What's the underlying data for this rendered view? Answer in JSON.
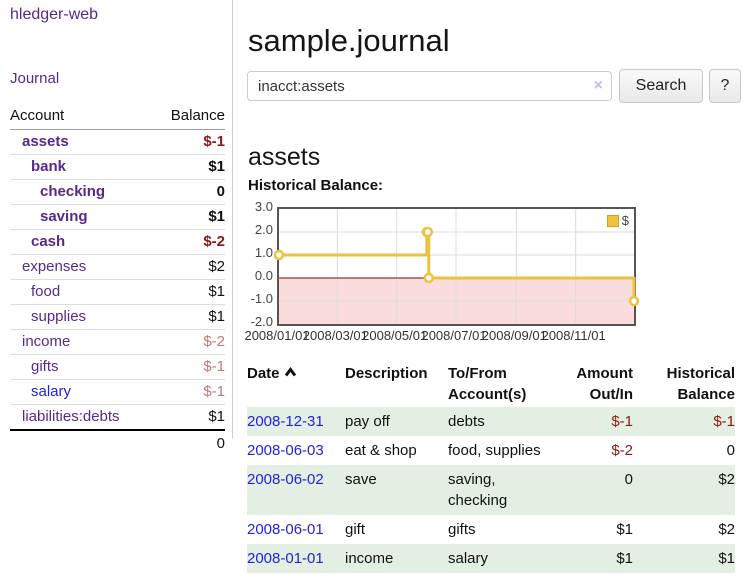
{
  "colors": {
    "purple": "#552a8b",
    "blue": "#2222dd",
    "red_strong": "#8b1717",
    "red_weak": "#c27878",
    "stripe": "#e3efe3",
    "gold": "#edc240"
  },
  "app": {
    "title": "hledger-web"
  },
  "sidebar": {
    "journal_link": "Journal",
    "accounts_header": {
      "account": "Account",
      "balance": "Balance"
    },
    "accounts": [
      {
        "name": "assets",
        "balance": "$-1",
        "indent": 0,
        "bold": true
      },
      {
        "name": "bank",
        "balance": "$1",
        "indent": 1,
        "bold": true
      },
      {
        "name": "checking",
        "balance": "0",
        "indent": 2,
        "bold": true
      },
      {
        "name": "saving",
        "balance": "$1",
        "indent": 2,
        "bold": true
      },
      {
        "name": "cash",
        "balance": "$-2",
        "indent": 1,
        "bold": true
      },
      {
        "name": "expenses",
        "balance": "$2",
        "indent": 0,
        "bold": false
      },
      {
        "name": "food",
        "balance": "$1",
        "indent": 1,
        "bold": false
      },
      {
        "name": "supplies",
        "balance": "$1",
        "indent": 1,
        "bold": false
      },
      {
        "name": "income",
        "balance": "$-2",
        "indent": 0,
        "bold": false
      },
      {
        "name": "gifts",
        "balance": "$-1",
        "indent": 1,
        "bold": false
      },
      {
        "name": "salary",
        "balance": "$-1",
        "indent": 1,
        "bold": false,
        "alt_link": true
      },
      {
        "name": "liabilities:debts",
        "balance": "$1",
        "indent": 0,
        "bold": false
      }
    ],
    "total": "0"
  },
  "header": {
    "title": "sample.journal"
  },
  "search": {
    "value": "inacct:assets",
    "clear_icon": "×",
    "button_label": "Search",
    "help_label": "?"
  },
  "account_page": {
    "heading": "assets",
    "chart_label": "Historical Balance:"
  },
  "chart_data": {
    "type": "line",
    "title": "Historical Balance",
    "step": true,
    "series": [
      {
        "name": "$",
        "color": "#edc240",
        "points": [
          [
            "2008-01-01",
            1
          ],
          [
            "2008-06-01",
            2
          ],
          [
            "2008-06-02",
            2
          ],
          [
            "2008-06-03",
            0
          ],
          [
            "2008-12-31",
            -1
          ]
        ]
      }
    ],
    "ylim": [
      -2,
      3
    ],
    "yticks": [
      "3.0",
      "2.0",
      "1.0",
      "0.0",
      "-1.0",
      "-2.0"
    ],
    "xticks": [
      "2008/01/01",
      "2008/03/01",
      "2008/05/01",
      "2008/07/01",
      "2008/09/01",
      "2008/11/01"
    ],
    "xrange": [
      "2008-01-01",
      "2008-12-31"
    ],
    "negative_region_color": "#fbdcdc",
    "zero_line_color": "#8b0000",
    "grid": true,
    "legend_position": "top-right"
  },
  "register": {
    "header": {
      "date": "Date",
      "description": "Description",
      "tofrom_line1": "To/From",
      "tofrom_line2": "Account(s)",
      "amount_line1": "Amount",
      "amount_line2": "Out/In",
      "balance_line1": "Historical",
      "balance_line2": "Balance"
    },
    "rows": [
      {
        "date": "2008-12-31",
        "description": "pay off",
        "accounts": "debts",
        "amount": "$-1",
        "balance": "$-1"
      },
      {
        "date": "2008-06-03",
        "description": "eat & shop",
        "accounts": "food, supplies",
        "amount": "$-2",
        "balance": "0"
      },
      {
        "date": "2008-06-02",
        "description": "save",
        "accounts": "saving, checking",
        "amount": "0",
        "balance": "$2"
      },
      {
        "date": "2008-06-01",
        "description": "gift",
        "accounts": "gifts",
        "amount": "$1",
        "balance": "$2"
      },
      {
        "date": "2008-01-01",
        "description": "income",
        "accounts": "salary",
        "amount": "$1",
        "balance": "$1"
      }
    ]
  }
}
